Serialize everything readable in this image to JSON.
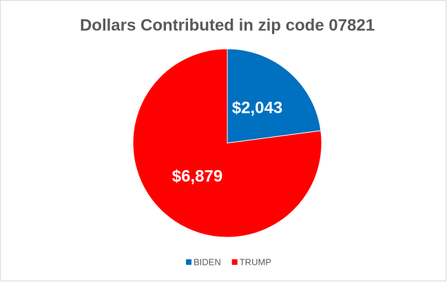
{
  "chart_data": {
    "type": "pie",
    "title": "Dollars Contributed in zip code 07821",
    "categories": [
      "BIDEN",
      "TRUMP"
    ],
    "values": [
      2043,
      6879
    ],
    "value_labels": [
      "$2,043",
      "$6,879"
    ],
    "colors": [
      "#0070c0",
      "#ff0000"
    ],
    "legend": "bottom"
  }
}
